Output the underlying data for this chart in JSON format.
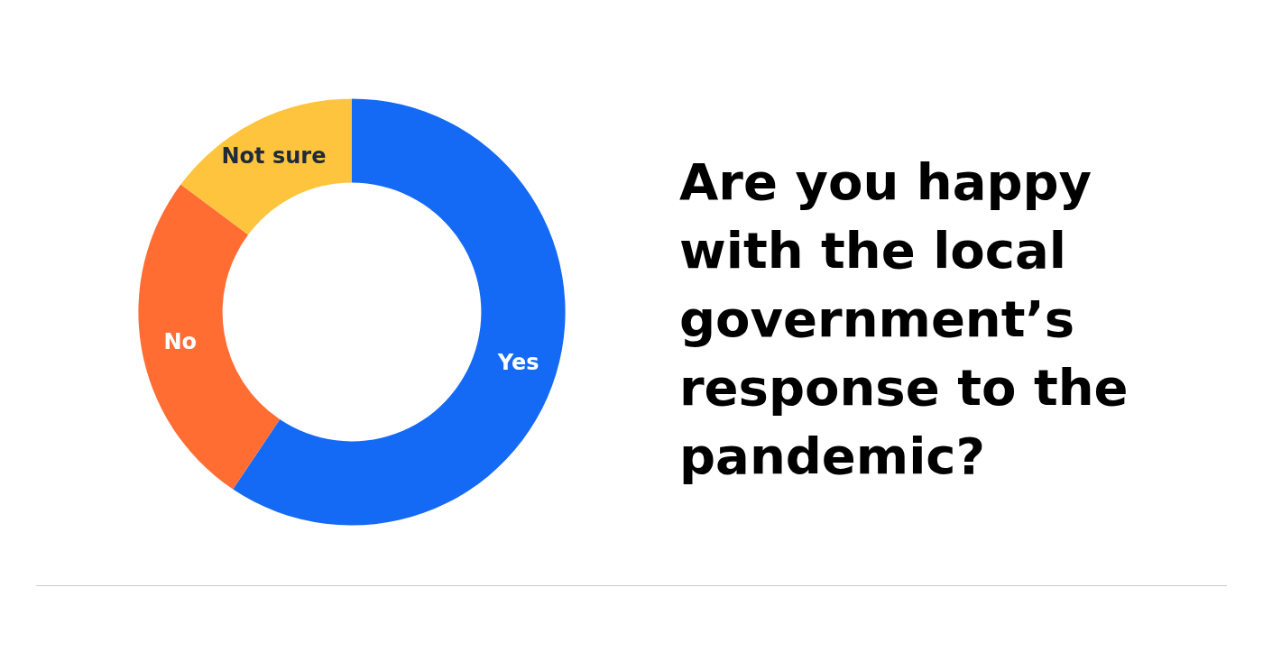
{
  "chart_data": {
    "type": "donut",
    "title": "Are you happy with the local government’s response to the pandemic?",
    "categories": [
      "Yes",
      "No",
      "Not sure"
    ],
    "values": [
      59.4,
      25.8,
      14.8
    ],
    "colors": [
      "#1469f5",
      "#ff6d33",
      "#ffc43d"
    ]
  }
}
